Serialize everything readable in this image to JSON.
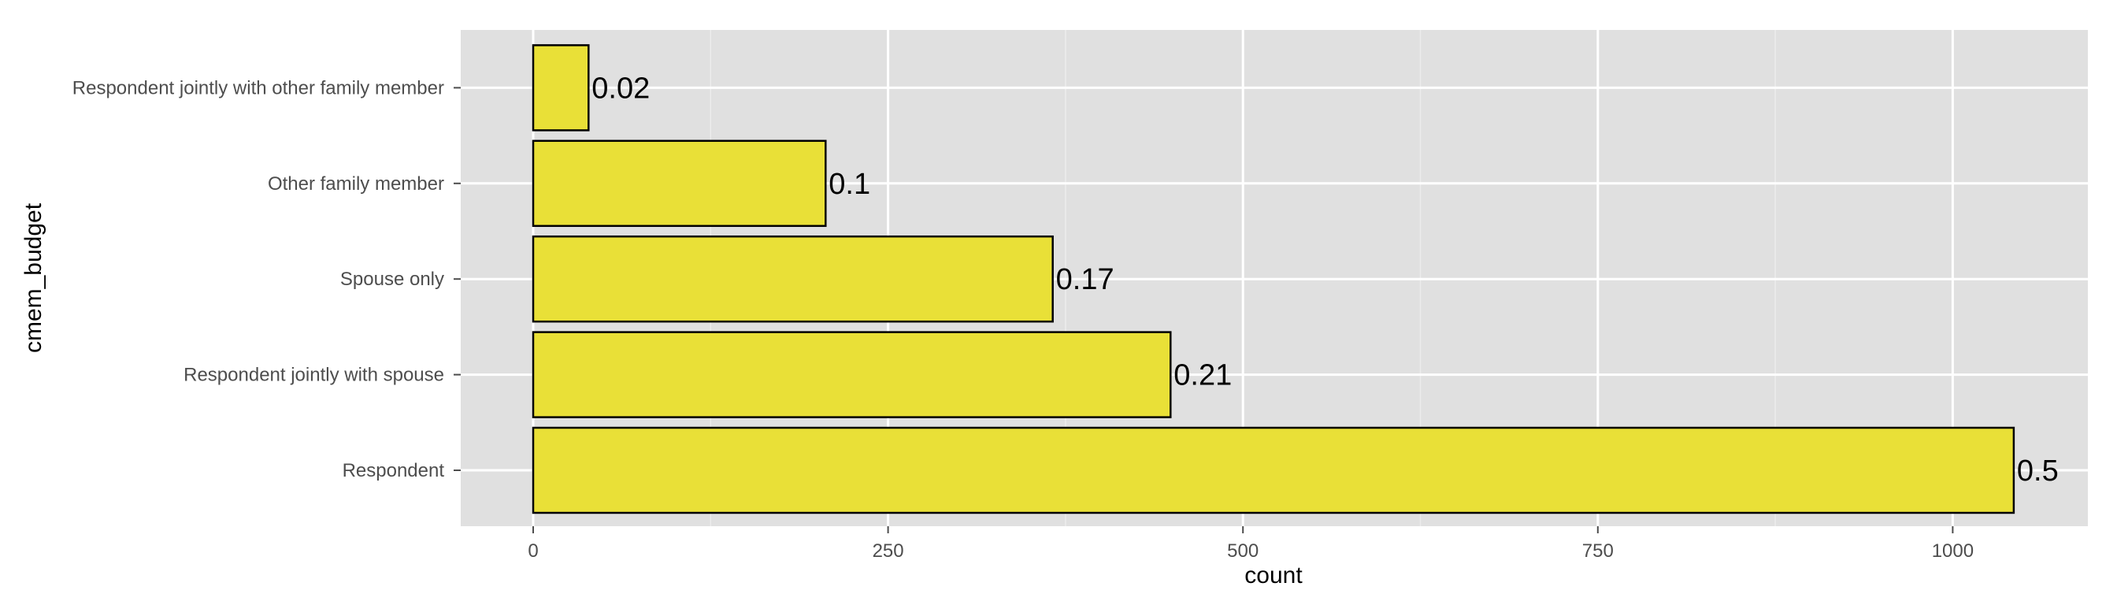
{
  "chart_data": {
    "type": "bar",
    "orientation": "horizontal",
    "categories": [
      "Respondent",
      "Respondent jointly with spouse",
      "Spouse only",
      "Other family member",
      "Respondent jointly with other family member"
    ],
    "values": [
      1043,
      449,
      366,
      206,
      39
    ],
    "data_labels": [
      "0.5",
      "0.21",
      "0.17",
      "0.1",
      "0.02"
    ],
    "xlabel": "count",
    "ylabel": "cmem_budget",
    "xlim": [
      -52,
      1043
    ],
    "x_ticks": [
      0,
      250,
      500,
      750,
      1000
    ],
    "x_tick_labels": [
      "0",
      "250",
      "500",
      "750",
      "1000"
    ],
    "grid": true,
    "legend": "none",
    "colors": {
      "bar_fill": "#e9e037",
      "bar_stroke": "#000000",
      "panel_background": "#e0e0e0",
      "grid_major": "#ffffff",
      "grid_minor": "#ececec"
    }
  }
}
